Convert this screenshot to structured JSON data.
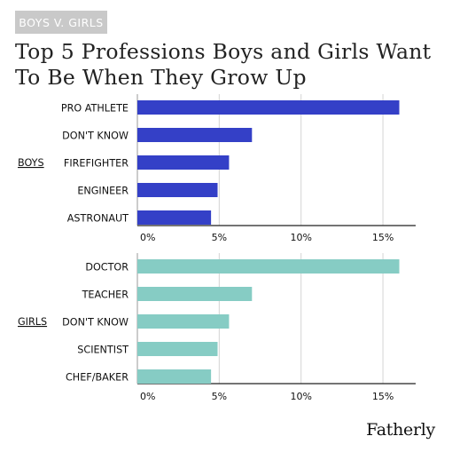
{
  "header": {
    "tag": "BOYS V. GIRLS",
    "title_lines": [
      "Top 5 Professions Boys and Girls Want",
      "To Be When They Grow Up"
    ]
  },
  "brand": "Fatherly",
  "chart_data": [
    {
      "type": "bar",
      "orientation": "horizontal",
      "group_label": "BOYS",
      "categories": [
        "PRO ATHLETE",
        "DON'T KNOW",
        "FIREFIGHTER",
        "ENGINEER",
        "ASTRONAUT"
      ],
      "values": [
        16.0,
        7.0,
        5.6,
        4.9,
        4.5
      ],
      "xlim": [
        0,
        17
      ],
      "xticks": [
        0,
        5,
        10,
        15
      ],
      "xtick_labels": [
        "0%",
        "5%",
        "10%",
        "15%"
      ],
      "grid": "vertical",
      "color": "#3440c7"
    },
    {
      "type": "bar",
      "orientation": "horizontal",
      "group_label": "GIRLS",
      "categories": [
        "DOCTOR",
        "TEACHER",
        "DON'T KNOW",
        "SCIENTIST",
        "CHEF/BAKER"
      ],
      "values": [
        16.0,
        7.0,
        5.6,
        4.9,
        4.5
      ],
      "xlim": [
        0,
        17
      ],
      "xticks": [
        0,
        5,
        10,
        15
      ],
      "xtick_labels": [
        "0%",
        "5%",
        "10%",
        "15%"
      ],
      "grid": "vertical",
      "color": "#86ccc4"
    }
  ]
}
